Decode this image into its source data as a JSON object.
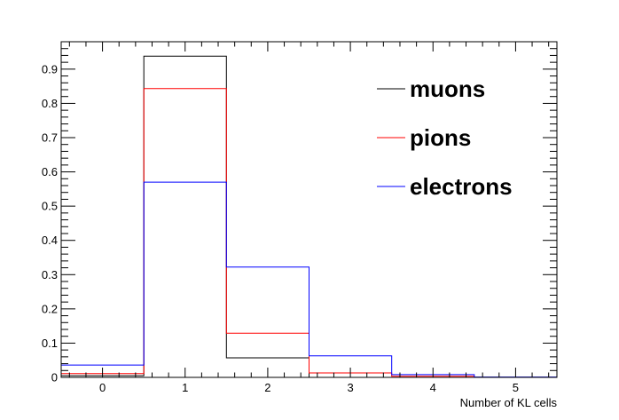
{
  "chart_data": {
    "type": "histogram",
    "xlabel": "Number of KL cells",
    "ylabel": "",
    "xlim": [
      -0.5,
      5.5
    ],
    "ylim": [
      0,
      0.98
    ],
    "bin_edges": [
      -0.5,
      0.5,
      1.5,
      2.5,
      3.5,
      4.5,
      5.5
    ],
    "x_ticks": [
      "0",
      "1",
      "2",
      "3",
      "4",
      "5"
    ],
    "y_ticks": [
      "0",
      "0.1",
      "0.2",
      "0.3",
      "0.4",
      "0.5",
      "0.6",
      "0.7",
      "0.8",
      "0.9"
    ],
    "grid": false,
    "legend_position": "top-right",
    "series": [
      {
        "name": "muons",
        "color": "#000000",
        "values": [
          0.005,
          0.938,
          0.057,
          0.0,
          0.0,
          0.0
        ]
      },
      {
        "name": "pions",
        "color": "#ff0000",
        "values": [
          0.011,
          0.843,
          0.129,
          0.013,
          0.003,
          0.0
        ]
      },
      {
        "name": "electrons",
        "color": "#0000ff",
        "values": [
          0.036,
          0.57,
          0.322,
          0.063,
          0.008,
          0.001
        ]
      }
    ]
  }
}
